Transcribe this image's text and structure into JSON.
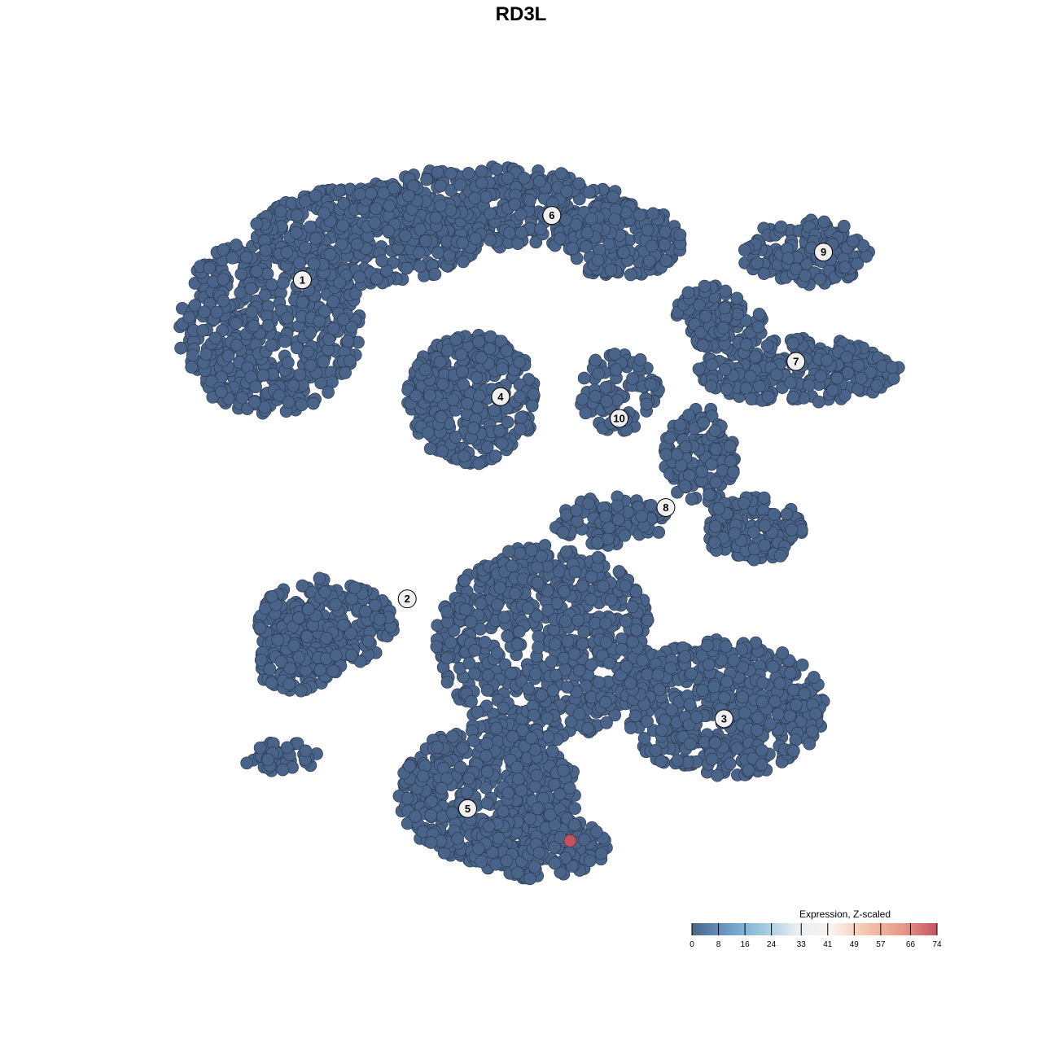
{
  "chart_data": {
    "type": "scatter",
    "title": "RD3L",
    "xlabel": "",
    "ylabel": "",
    "grid": false,
    "xlim": [
      -50,
      50
    ],
    "ylim": [
      -50,
      50
    ],
    "point_color_default": "#4a6489",
    "clusters": [
      {
        "label": "1",
        "x": -30.7,
        "y": 32.2
      },
      {
        "label": "2",
        "x": -17.0,
        "y": -10.4
      },
      {
        "label": "3",
        "x": 24.4,
        "y": -26.4
      },
      {
        "label": "4",
        "x": -4.8,
        "y": 16.6
      },
      {
        "label": "5",
        "x": -9.1,
        "y": -38.4
      },
      {
        "label": "6",
        "x": 1.9,
        "y": 40.8
      },
      {
        "label": "7",
        "x": 33.8,
        "y": 21.3
      },
      {
        "label": "8",
        "x": 16.8,
        "y": 1.8
      },
      {
        "label": "9",
        "x": 37.4,
        "y": 35.9
      },
      {
        "label": "10",
        "x": 10.7,
        "y": 13.7
      }
    ],
    "highlighted_points": [
      {
        "x": 4.3,
        "y": -42.7,
        "expression": 74
      }
    ],
    "legend": {
      "title": "Expression, Z-scaled",
      "placement": "bottom-right",
      "ticks": [
        "0",
        "8",
        "16",
        "24",
        "33",
        "41",
        "49",
        "57",
        "66",
        "74"
      ],
      "range": [
        0,
        74
      ],
      "colors": [
        "#4a6489",
        "#6a9bc6",
        "#9cc8df",
        "#e9eef3",
        "#f9f2ee",
        "#f5c3aa",
        "#e79a86",
        "#c45362"
      ]
    }
  }
}
